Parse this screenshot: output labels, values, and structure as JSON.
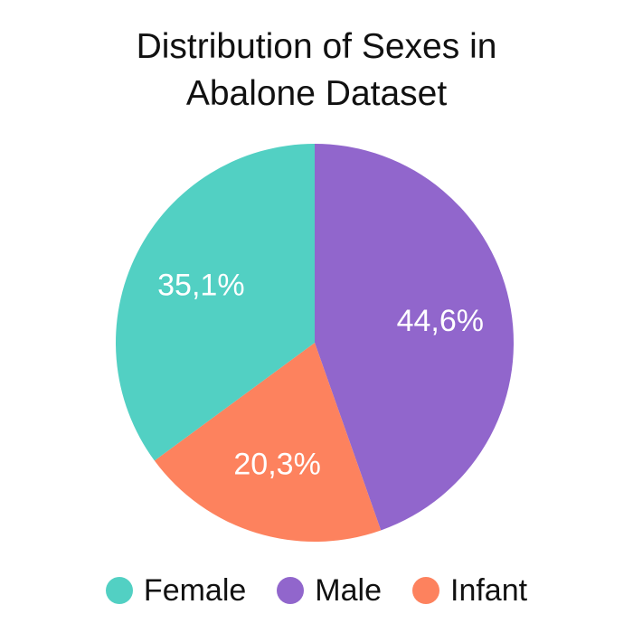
{
  "chart_data": {
    "type": "pie",
    "title_lines": [
      "Distribution of Sexes in",
      "Abalone Dataset"
    ],
    "start_angle_deg": 0,
    "direction": "clockwise",
    "legend_position": "bottom",
    "slices": [
      {
        "name": "Male",
        "value": 44.6,
        "label": "44,6%",
        "color": "#9166cc"
      },
      {
        "name": "Infant",
        "value": 20.3,
        "label": "20,3%",
        "color": "#fd825e"
      },
      {
        "name": "Female",
        "value": 35.1,
        "label": "35,1%",
        "color": "#52d0c3"
      }
    ],
    "legend": [
      {
        "name": "Female",
        "color": "#52d0c3"
      },
      {
        "name": "Male",
        "color": "#9166cc"
      },
      {
        "name": "Infant",
        "color": "#fd825e"
      }
    ]
  }
}
